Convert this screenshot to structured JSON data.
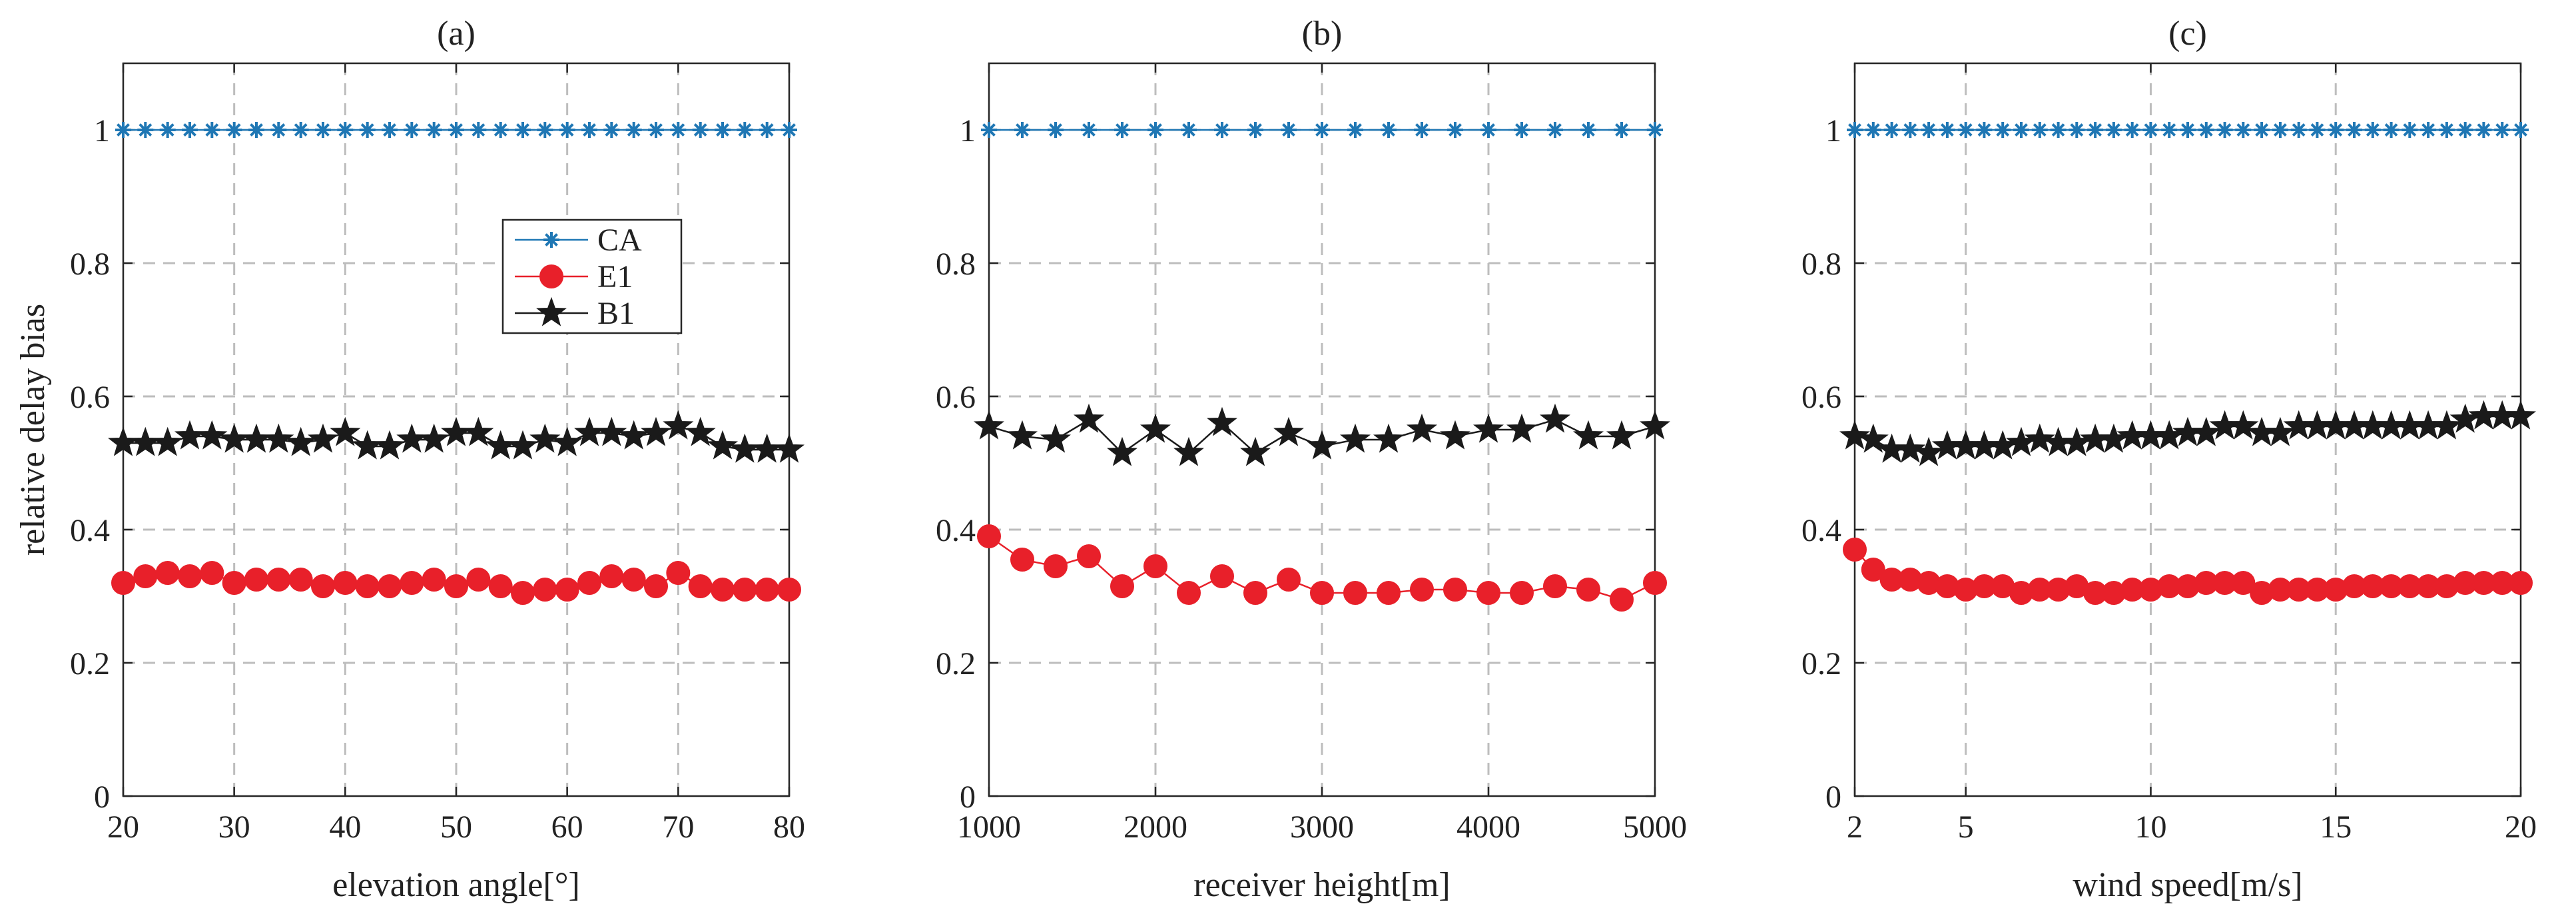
{
  "chart_data": [
    {
      "type": "line",
      "title": "(a)",
      "xlabel": "elevation angle[°]",
      "ylabel": "relative delay bias",
      "xlim": [
        20,
        80
      ],
      "ylim": [
        0,
        1.1
      ],
      "xticks": [
        20,
        30,
        40,
        50,
        60,
        70,
        80
      ],
      "xtick_labels": [
        "20",
        "30",
        "40",
        "50",
        "60",
        "70",
        "80"
      ],
      "yticks": [
        0,
        0.2,
        0.4,
        0.6,
        0.8,
        1
      ],
      "ytick_labels": [
        "0",
        "0.2",
        "0.4",
        "0.6",
        "0.8",
        "1"
      ],
      "grid": true,
      "legend": "inside-upper-right",
      "x": [
        20,
        22,
        24,
        26,
        28,
        30,
        32,
        34,
        36,
        38,
        40,
        42,
        44,
        46,
        48,
        50,
        52,
        54,
        56,
        58,
        60,
        62,
        64,
        66,
        68,
        70,
        72,
        74,
        76,
        78,
        80
      ],
      "series": [
        {
          "name": "CA",
          "color": "#1f77b4",
          "marker": "asterisk",
          "values": [
            1,
            1,
            1,
            1,
            1,
            1,
            1,
            1,
            1,
            1,
            1,
            1,
            1,
            1,
            1,
            1,
            1,
            1,
            1,
            1,
            1,
            1,
            1,
            1,
            1,
            1,
            1,
            1,
            1,
            1,
            1
          ]
        },
        {
          "name": "E1",
          "color": "#e8202a",
          "marker": "circle",
          "values": [
            0.32,
            0.33,
            0.335,
            0.33,
            0.335,
            0.32,
            0.325,
            0.325,
            0.325,
            0.315,
            0.32,
            0.315,
            0.315,
            0.32,
            0.325,
            0.315,
            0.325,
            0.315,
            0.305,
            0.31,
            0.31,
            0.32,
            0.33,
            0.325,
            0.315,
            0.335,
            0.315,
            0.31,
            0.31,
            0.31,
            0.31
          ]
        },
        {
          "name": "B1",
          "color": "#1a1a1a",
          "marker": "star",
          "values": [
            0.53,
            0.53,
            0.53,
            0.54,
            0.54,
            0.535,
            0.535,
            0.535,
            0.53,
            0.535,
            0.545,
            0.525,
            0.525,
            0.535,
            0.535,
            0.545,
            0.545,
            0.525,
            0.525,
            0.535,
            0.53,
            0.545,
            0.545,
            0.54,
            0.545,
            0.555,
            0.545,
            0.525,
            0.52,
            0.52,
            0.52
          ]
        }
      ]
    },
    {
      "type": "line",
      "title": "(b)",
      "xlabel": "receiver height[m]",
      "ylabel": "",
      "xlim": [
        1000,
        5000
      ],
      "ylim": [
        0,
        1.1
      ],
      "xticks": [
        1000,
        2000,
        3000,
        4000,
        5000
      ],
      "xtick_labels": [
        "1000",
        "2000",
        "3000",
        "4000",
        "5000"
      ],
      "yticks": [
        0,
        0.2,
        0.4,
        0.6,
        0.8,
        1
      ],
      "ytick_labels": [
        "0",
        "0.2",
        "0.4",
        "0.6",
        "0.8",
        "1"
      ],
      "grid": true,
      "x": [
        1000,
        1200,
        1400,
        1600,
        1800,
        2000,
        2200,
        2400,
        2600,
        2800,
        3000,
        3200,
        3400,
        3600,
        3800,
        4000,
        4200,
        4400,
        4600,
        4800,
        5000
      ],
      "series": [
        {
          "name": "CA",
          "color": "#1f77b4",
          "marker": "asterisk",
          "values": [
            1,
            1,
            1,
            1,
            1,
            1,
            1,
            1,
            1,
            1,
            1,
            1,
            1,
            1,
            1,
            1,
            1,
            1,
            1,
            1,
            1
          ]
        },
        {
          "name": "E1",
          "color": "#e8202a",
          "marker": "circle",
          "values": [
            0.39,
            0.355,
            0.345,
            0.36,
            0.315,
            0.345,
            0.305,
            0.33,
            0.305,
            0.325,
            0.305,
            0.305,
            0.305,
            0.31,
            0.31,
            0.305,
            0.305,
            0.315,
            0.31,
            0.295,
            0.32
          ]
        },
        {
          "name": "B1",
          "color": "#1a1a1a",
          "marker": "star",
          "values": [
            0.555,
            0.54,
            0.535,
            0.565,
            0.515,
            0.55,
            0.515,
            0.56,
            0.515,
            0.545,
            0.525,
            0.535,
            0.535,
            0.55,
            0.54,
            0.55,
            0.55,
            0.565,
            0.54,
            0.54,
            0.555
          ]
        }
      ]
    },
    {
      "type": "line",
      "title": "(c)",
      "xlabel": "wind speed[m/s]",
      "ylabel": "",
      "xlim": [
        2,
        20
      ],
      "ylim": [
        0,
        1.1
      ],
      "xticks": [
        2,
        5,
        10,
        15,
        20
      ],
      "xtick_labels": [
        "2",
        "5",
        "10",
        "15",
        "20"
      ],
      "yticks": [
        0,
        0.2,
        0.4,
        0.6,
        0.8,
        1
      ],
      "ytick_labels": [
        "0",
        "0.2",
        "0.4",
        "0.6",
        "0.8",
        "1"
      ],
      "grid": true,
      "x": [
        2,
        2.5,
        3,
        3.5,
        4,
        4.5,
        5,
        5.5,
        6,
        6.5,
        7,
        7.5,
        8,
        8.5,
        9,
        9.5,
        10,
        10.5,
        11,
        11.5,
        12,
        12.5,
        13,
        13.5,
        14,
        14.5,
        15,
        15.5,
        16,
        16.5,
        17,
        17.5,
        18,
        18.5,
        19,
        19.5,
        20
      ],
      "series": [
        {
          "name": "CA",
          "color": "#1f77b4",
          "marker": "asterisk",
          "values": [
            1,
            1,
            1,
            1,
            1,
            1,
            1,
            1,
            1,
            1,
            1,
            1,
            1,
            1,
            1,
            1,
            1,
            1,
            1,
            1,
            1,
            1,
            1,
            1,
            1,
            1,
            1,
            1,
            1,
            1,
            1,
            1,
            1,
            1,
            1,
            1,
            1
          ]
        },
        {
          "name": "E1",
          "color": "#e8202a",
          "marker": "circle",
          "values": [
            0.37,
            0.34,
            0.325,
            0.325,
            0.32,
            0.315,
            0.31,
            0.315,
            0.315,
            0.305,
            0.31,
            0.31,
            0.315,
            0.305,
            0.305,
            0.31,
            0.31,
            0.315,
            0.315,
            0.32,
            0.32,
            0.32,
            0.305,
            0.31,
            0.31,
            0.31,
            0.31,
            0.315,
            0.315,
            0.315,
            0.315,
            0.315,
            0.315,
            0.32,
            0.32,
            0.32,
            0.32
          ]
        },
        {
          "name": "B1",
          "color": "#1a1a1a",
          "marker": "star",
          "values": [
            0.54,
            0.535,
            0.52,
            0.52,
            0.515,
            0.525,
            0.525,
            0.525,
            0.525,
            0.53,
            0.535,
            0.53,
            0.53,
            0.535,
            0.535,
            0.54,
            0.54,
            0.54,
            0.545,
            0.545,
            0.555,
            0.555,
            0.545,
            0.545,
            0.555,
            0.555,
            0.555,
            0.555,
            0.555,
            0.555,
            0.555,
            0.555,
            0.555,
            0.565,
            0.57,
            0.57,
            0.57
          ]
        }
      ]
    }
  ]
}
